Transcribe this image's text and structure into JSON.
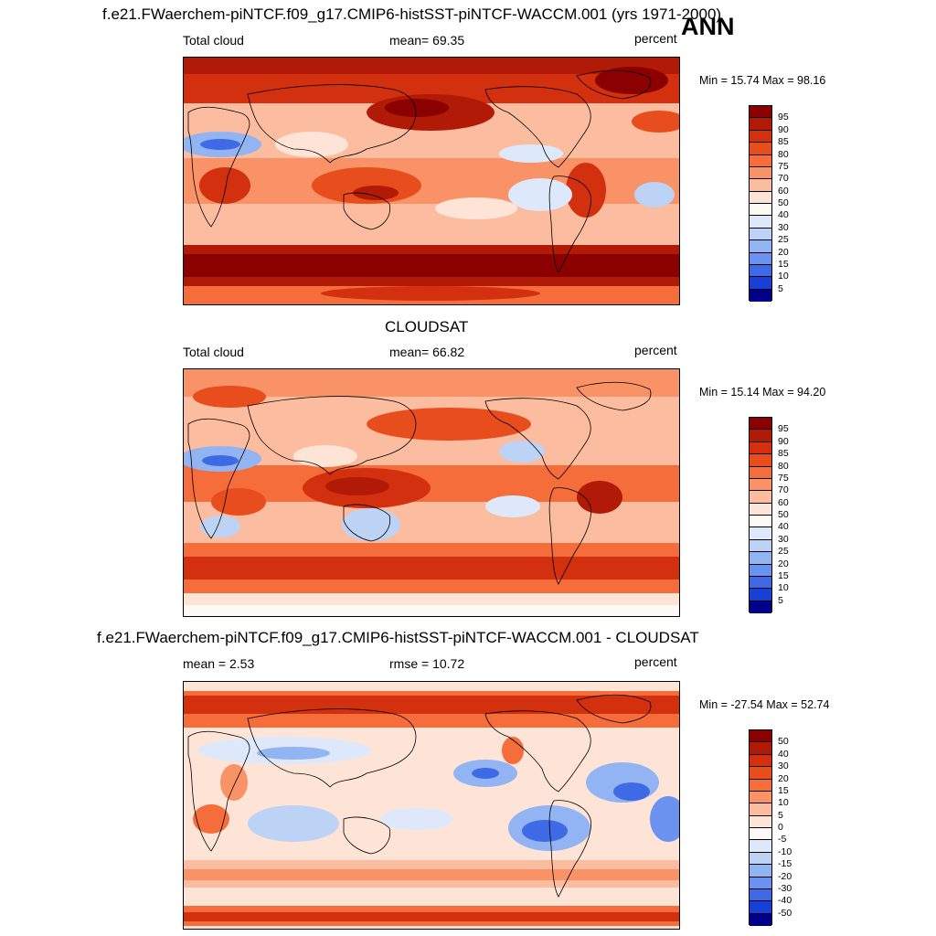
{
  "season": "ANN",
  "panels": [
    {
      "title": "f.e21.FWaerchem-piNTCF.f09_g17.CMIP6-histSST-piNTCF-WACCM.001 (yrs 1971-2000)",
      "left_label": "Total cloud",
      "center_label": "mean=  69.35",
      "units": "percent",
      "minmax": "Min =  15.74 Max =  98.16",
      "colorbar": {
        "levels": [
          "95",
          "90",
          "85",
          "80",
          "75",
          "70",
          "60",
          "50",
          "40",
          "30",
          "25",
          "20",
          "15",
          "10",
          "5"
        ],
        "colors": [
          "#8b0000",
          "#b11a06",
          "#d3300f",
          "#e84d1e",
          "#f46d3a",
          "#f99266",
          "#fcbca0",
          "#fde4d6",
          "#fdfaf5",
          "#dde9fb",
          "#bcd3f6",
          "#93b4f2",
          "#6a92ee",
          "#3f6ae6",
          "#1a3fd6",
          "#00008b"
        ]
      }
    },
    {
      "title": "CLOUDSAT",
      "left_label": "Total cloud",
      "center_label": "mean=  66.82",
      "units": "percent",
      "minmax": "Min =  15.14 Max =  94.20",
      "colorbar": {
        "levels": [
          "95",
          "90",
          "85",
          "80",
          "75",
          "70",
          "60",
          "50",
          "40",
          "30",
          "25",
          "20",
          "15",
          "10",
          "5"
        ],
        "colors": [
          "#8b0000",
          "#b11a06",
          "#d3300f",
          "#e84d1e",
          "#f46d3a",
          "#f99266",
          "#fcbca0",
          "#fde4d6",
          "#fdfaf5",
          "#dde9fb",
          "#bcd3f6",
          "#93b4f2",
          "#6a92ee",
          "#3f6ae6",
          "#1a3fd6",
          "#00008b"
        ]
      }
    },
    {
      "title": "f.e21.FWaerchem-piNTCF.f09_g17.CMIP6-histSST-piNTCF-WACCM.001 - CLOUDSAT",
      "left_label": "mean =   2.53",
      "center_label": "rmse =  10.72",
      "units": "percent",
      "minmax": "Min = -27.54 Max =  52.74",
      "colorbar": {
        "levels": [
          "50",
          "40",
          "30",
          "20",
          "15",
          "10",
          "5",
          "0",
          "-5",
          "-10",
          "-15",
          "-20",
          "-30",
          "-40",
          "-50"
        ],
        "colors": [
          "#8b0000",
          "#b11a06",
          "#d3300f",
          "#e84d1e",
          "#f46d3a",
          "#f99266",
          "#fcbca0",
          "#fde4d6",
          "#fdfaf5",
          "#dde9fb",
          "#bcd3f6",
          "#93b4f2",
          "#6a92ee",
          "#3f6ae6",
          "#1a3fd6",
          "#00008b"
        ]
      }
    }
  ]
}
